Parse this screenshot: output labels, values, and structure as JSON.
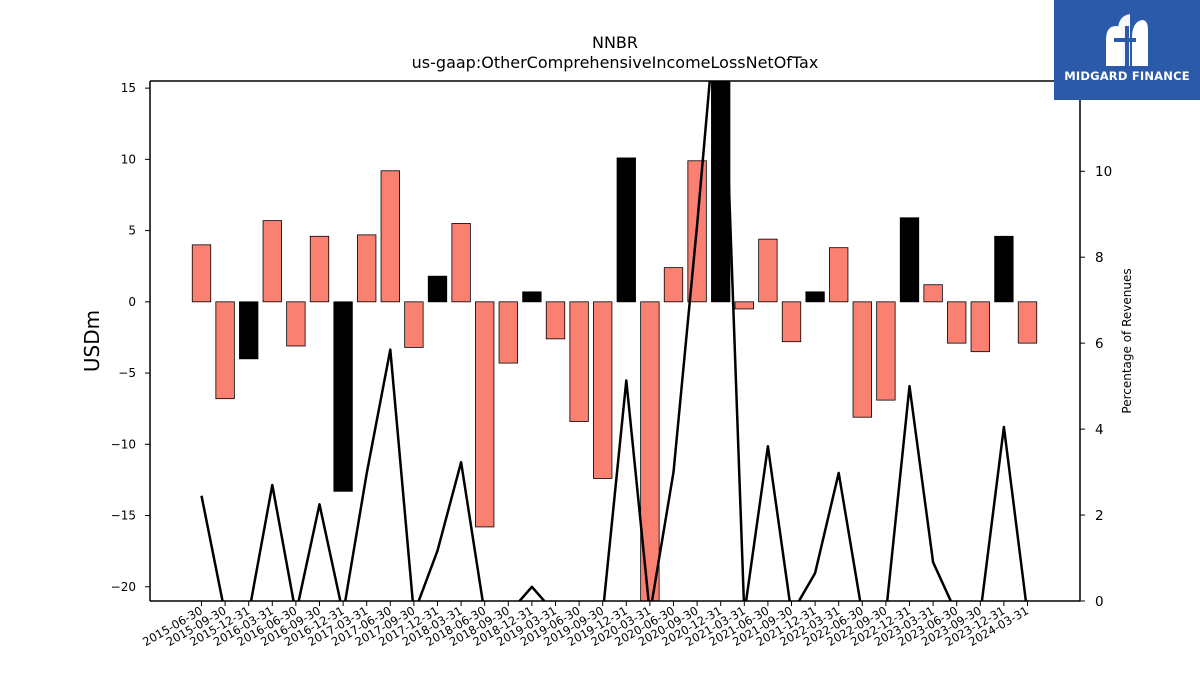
{
  "chart_data": {
    "type": "bar",
    "title": "NNBR",
    "subtitle": "us-gaap:OtherComprehensiveIncomeLossNetOfTax",
    "ylabel": "USDm",
    "y2label": "Percentage of Revenues",
    "ylim": [
      -21,
      15.5
    ],
    "y2lim": [
      0,
      12.1
    ],
    "yticks": [
      15,
      10,
      5,
      0,
      -5,
      -10,
      -15,
      -20
    ],
    "y2ticks": [
      0,
      2,
      4,
      6,
      8,
      10
    ],
    "categories": [
      "2015-06-30",
      "2015-09-30",
      "2015-12-31",
      "2016-03-31",
      "2016-06-30",
      "2016-09-30",
      "2016-12-31",
      "2017-03-31",
      "2017-06-30",
      "2017-09-30",
      "2017-12-31",
      "2018-03-31",
      "2018-06-30",
      "2018-09-30",
      "2018-12-31",
      "2019-03-31",
      "2019-06-30",
      "2019-09-30",
      "2019-12-31",
      "2020-03-31",
      "2020-06-30",
      "2020-09-30",
      "2020-12-31",
      "2021-03-31",
      "2021-06-30",
      "2021-09-30",
      "2021-12-31",
      "2022-03-31",
      "2022-06-30",
      "2022-09-30",
      "2022-12-31",
      "2023-03-31",
      "2023-06-30",
      "2023-09-30",
      "2023-12-31",
      "2024-03-31"
    ],
    "series": [
      {
        "kind": "bar",
        "values": [
          4.0,
          -6.8,
          -4.0,
          5.7,
          -3.1,
          4.6,
          -13.3,
          4.7,
          9.2,
          -3.2,
          1.8,
          5.5,
          -15.8,
          -4.3,
          0.7,
          -2.6,
          -8.4,
          -12.4,
          10.1,
          -22.0,
          2.4,
          9.9,
          16.5,
          -0.5,
          4.4,
          -2.8,
          0.7,
          3.8,
          -8.1,
          -6.9,
          5.9,
          1.2,
          -2.9,
          -3.5,
          4.6,
          -2.9
        ],
        "highlight": [
          false,
          false,
          true,
          false,
          false,
          false,
          true,
          false,
          false,
          false,
          true,
          false,
          false,
          false,
          true,
          false,
          false,
          false,
          true,
          false,
          false,
          false,
          true,
          false,
          false,
          false,
          true,
          false,
          false,
          false,
          true,
          false,
          false,
          false,
          true,
          false
        ],
        "color": "#fa8072",
        "highlight_color": "#000000"
      },
      {
        "kind": "line",
        "axis": "right",
        "values": [
          2.45,
          -0.3,
          -0.3,
          2.7,
          -0.3,
          2.25,
          -0.3,
          2.97,
          5.85,
          -0.3,
          1.17,
          3.23,
          -0.3,
          -0.3,
          0.33,
          -0.3,
          -0.3,
          -0.3,
          5.13,
          -0.3,
          3.0,
          8.75,
          15.0,
          -0.3,
          3.6,
          -0.3,
          0.65,
          2.98,
          -0.3,
          -0.3,
          5.0,
          0.9,
          -0.3,
          -0.3,
          4.05,
          -0.3
        ],
        "color": "#000000"
      }
    ],
    "logo_text": "MIDGARD FINANCE",
    "colors": {
      "logo_bg": "#2a5aa9"
    }
  }
}
